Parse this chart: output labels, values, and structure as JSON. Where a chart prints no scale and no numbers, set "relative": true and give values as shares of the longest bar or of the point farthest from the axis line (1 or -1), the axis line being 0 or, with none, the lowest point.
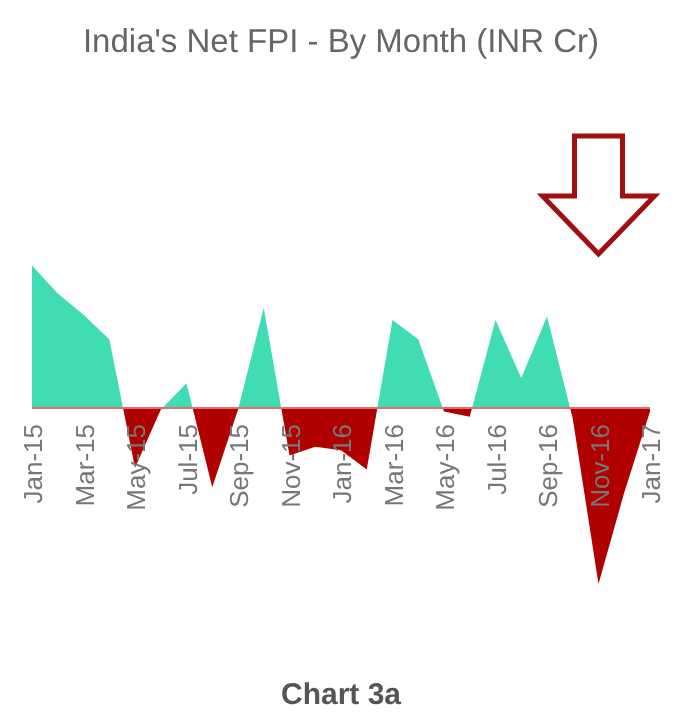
{
  "chart_data": {
    "type": "area",
    "title": "India's Net FPI - By Month (INR Cr)",
    "relative": true,
    "categories": [
      "Jan-15",
      null,
      "Mar-15",
      null,
      "May-15",
      null,
      "Jul-15",
      null,
      "Sep-15",
      null,
      "Nov-15",
      null,
      "Jan-16",
      null,
      "Mar-16",
      null,
      "May-16",
      null,
      "Jul-16",
      null,
      "Sep-16",
      null,
      "Nov-16",
      null,
      "Jan-17"
    ],
    "series": [
      {
        "values": [
          0.81,
          0.65,
          0.53,
          0.39,
          -0.34,
          -0.01,
          0.14,
          -0.45,
          -0.01,
          0.57,
          -0.27,
          -0.22,
          -0.24,
          -0.35,
          0.5,
          0.39,
          -0.02,
          -0.05,
          0.5,
          0.17,
          0.52,
          -0.06,
          -1,
          -0.48,
          -0.02
        ],
        "colors": [
          "#40dcb4",
          "#40dcb4",
          "#40dcb4",
          "#40dcb4",
          "#b00000",
          "#b00000",
          "#40dcb4",
          "#b00000",
          "#b00000",
          "#40dcb4",
          "#b00000",
          "#b00000",
          "#b00000",
          "#b00000",
          "#40dcb4",
          "#40dcb4",
          "#b00000",
          "#b00000",
          "#40dcb4",
          "#40dcb4",
          "#40dcb4",
          "#b00000",
          "#b00000",
          "#b00000",
          "#b00000"
        ]
      }
    ],
    "annotations": [
      "Chart 3a"
    ]
  }
}
